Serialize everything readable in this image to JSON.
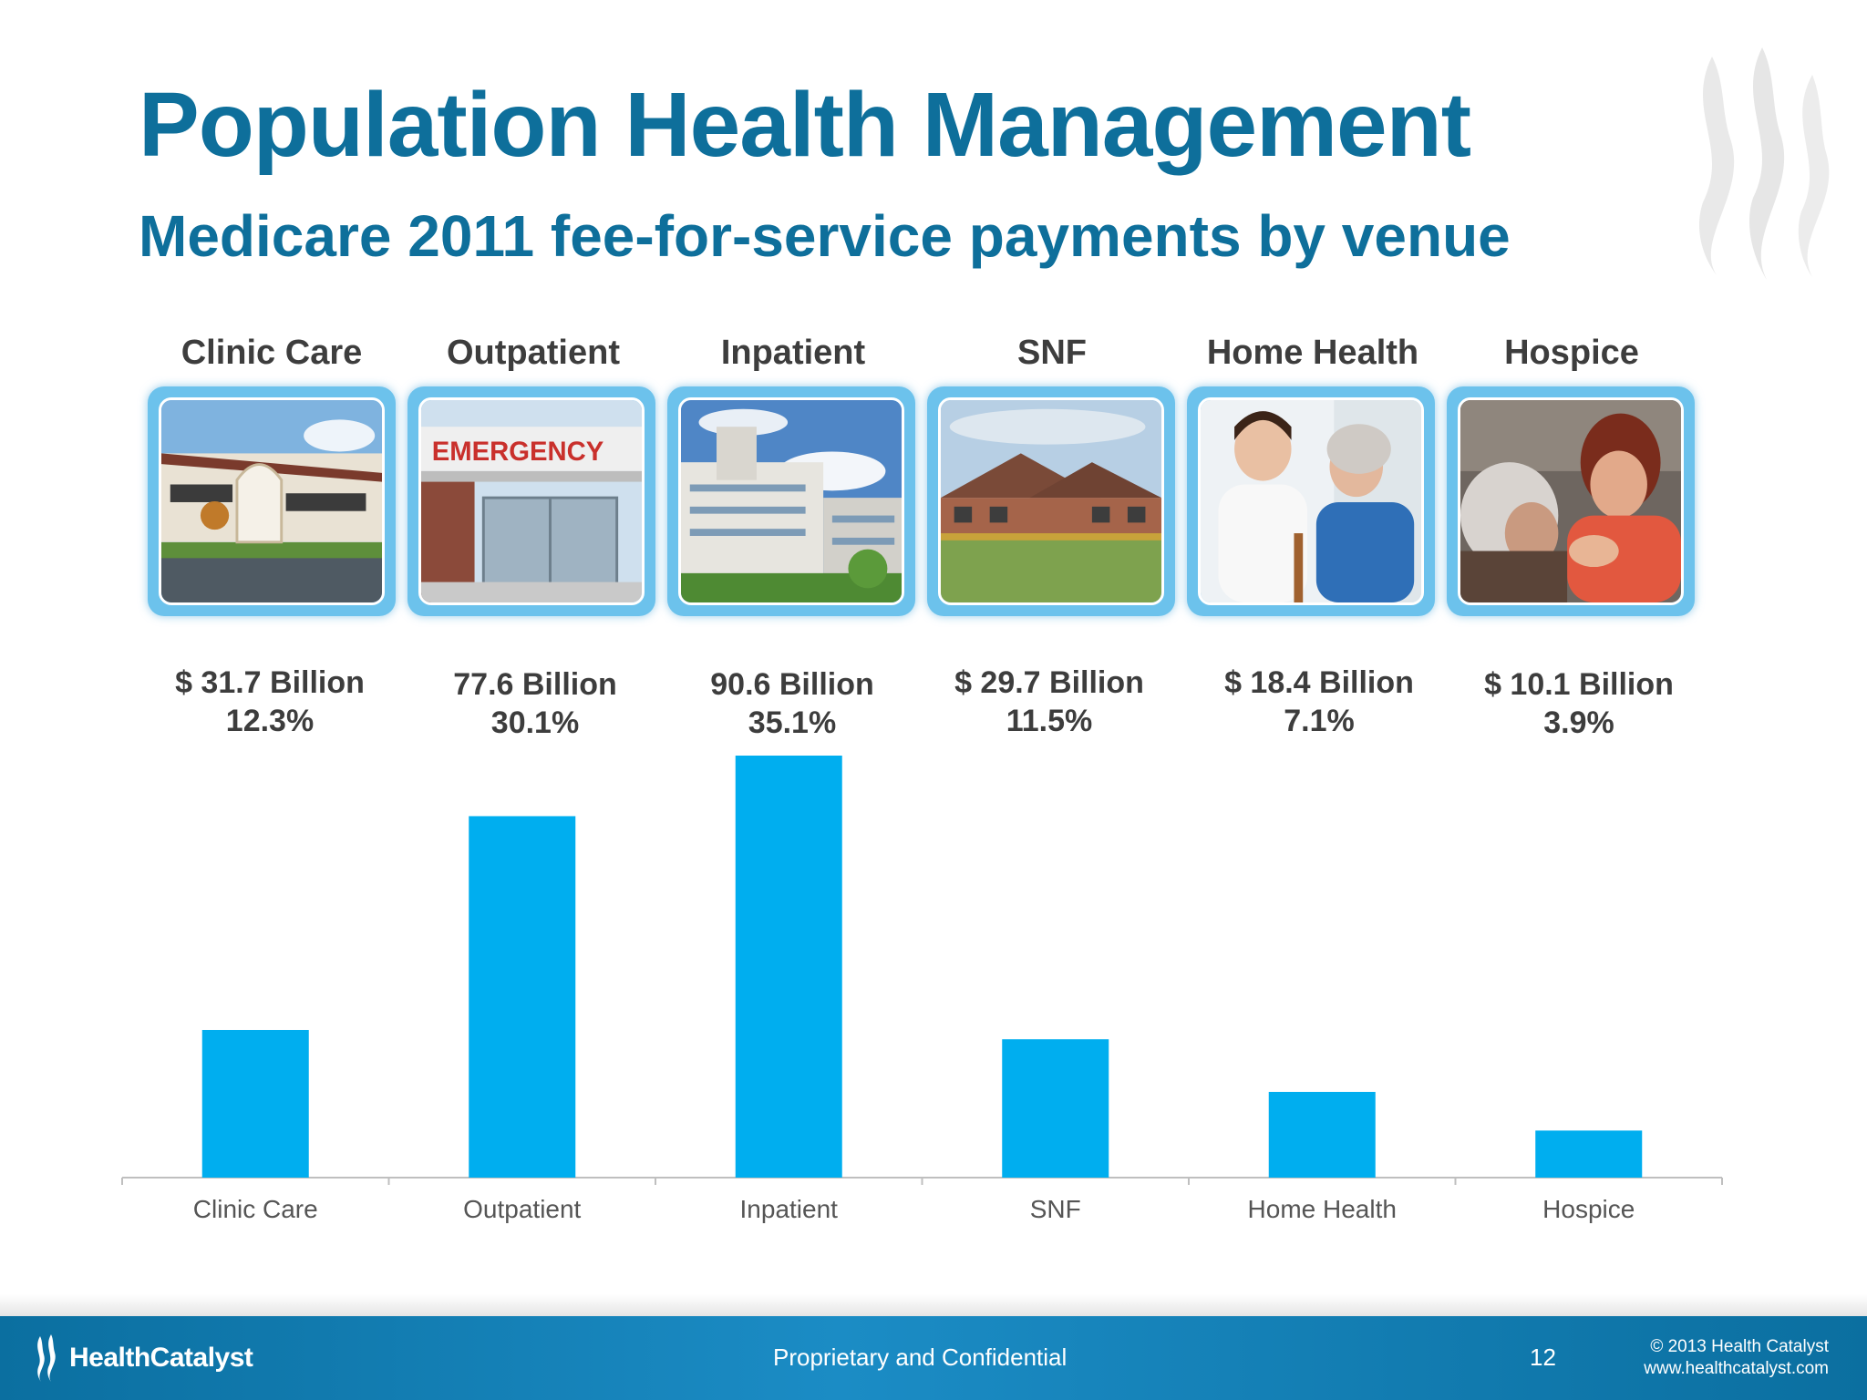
{
  "slide": {
    "title": "Population Health Management",
    "subtitle": "Medicare 2011 fee-for-service payments by venue"
  },
  "venues": [
    {
      "label": "Clinic Care",
      "amount": "$ 31.7 Billion",
      "percent": "12.3%",
      "photo": "clinic-building-photo"
    },
    {
      "label": "Outpatient",
      "amount": "77.6 Billion",
      "percent": "30.1%",
      "photo": "emergency-entrance-photo"
    },
    {
      "label": "Inpatient",
      "amount": "90.6 Billion",
      "percent": "35.1%",
      "photo": "hospital-building-photo"
    },
    {
      "label": "SNF",
      "amount": "$ 29.7 Billion",
      "percent": "11.5%",
      "photo": "nursing-facility-photo"
    },
    {
      "label": "Home Health",
      "amount": "$ 18.4 Billion",
      "percent": "7.1%",
      "photo": "nurse-with-patient-photo"
    },
    {
      "label": "Hospice",
      "amount": "$ 10.1 Billion",
      "percent": "3.9%",
      "photo": "caregiver-embrace-photo"
    }
  ],
  "chart_data": {
    "type": "bar",
    "categories": [
      "Clinic Care",
      "Outpatient",
      "Inpatient",
      "SNF",
      "Home Health",
      "Hospice"
    ],
    "values": [
      31.7,
      77.6,
      90.6,
      29.7,
      18.4,
      10.1
    ],
    "ylim": [
      0,
      90.6
    ],
    "grid": false,
    "legend": "none",
    "bar_color": "#00aeef"
  },
  "footer": {
    "logo_text": "HealthCatalyst",
    "logo_icon": "flame-logo-icon",
    "confidential": "Proprietary and Confidential",
    "page_number": "12",
    "copyright": "© 2013 Health Catalyst",
    "website": "www.healthcatalyst.com"
  },
  "colors": {
    "title": "#0e6f9b",
    "frame": "#6cc2ec",
    "bar": "#00aeef",
    "footer": "#0b6fa0"
  }
}
